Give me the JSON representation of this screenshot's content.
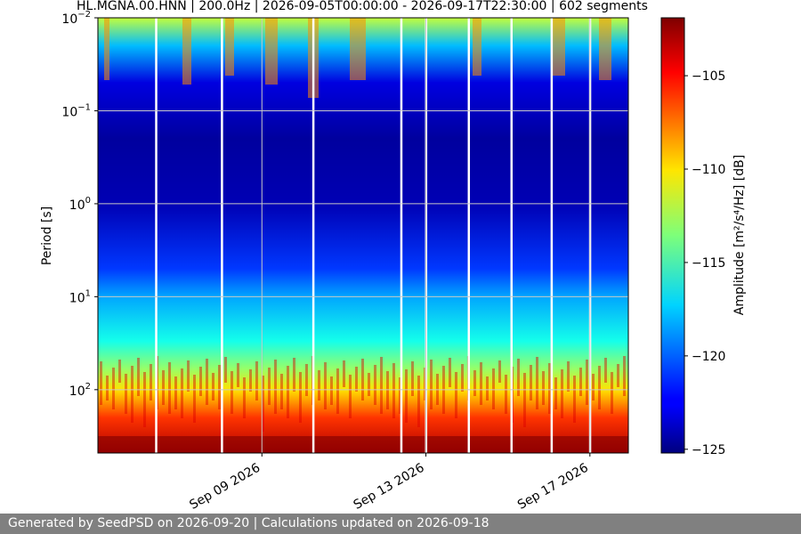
{
  "chart_data": {
    "type": "heatmap",
    "title": "HL.MGNA.00.HNN | 200.0Hz | 2026-09-05T00:00:00 - 2026-09-17T22:30:00 | 602 segments",
    "xlabel": "",
    "ylabel": "Period [s]",
    "x_range": [
      "2026-09-05T00:00:00",
      "2026-09-17T22:30:00"
    ],
    "x_tick_labels": [
      "Sep 09 2026",
      "Sep 13 2026",
      "Sep 17 2026"
    ],
    "x_tick_dates": [
      "2026-09-09",
      "2026-09-13",
      "2026-09-17"
    ],
    "y_scale": "log",
    "y_inverted": true,
    "y_range": [
      0.01,
      480
    ],
    "y_ticks": [
      {
        "value": 0.01,
        "base": "10",
        "exp": "−2"
      },
      {
        "value": 0.1,
        "base": "10",
        "exp": "−1"
      },
      {
        "value": 1,
        "base": "10",
        "exp": "0"
      },
      {
        "value": 10,
        "base": "10",
        "exp": "1"
      },
      {
        "value": 100,
        "base": "10",
        "exp": "2"
      }
    ],
    "grid": true,
    "colorbar": {
      "label": "Amplitude [m²/s⁴/Hz] [dB]",
      "range": [
        -125.2,
        -101.9
      ],
      "ticks": [
        -105,
        -110,
        -115,
        -120,
        -125
      ],
      "tick_labels": [
        "−105",
        "−110",
        "−115",
        "−120",
        "−125"
      ],
      "colormap": "jet"
    },
    "summary_profile_db": [
      {
        "period": 0.01,
        "db": -112
      },
      {
        "period": 0.02,
        "db": -118
      },
      {
        "period": 0.05,
        "db": -123
      },
      {
        "period": 0.2,
        "db": -124.5
      },
      {
        "period": 1,
        "db": -124
      },
      {
        "period": 5,
        "db": -121
      },
      {
        "period": 10,
        "db": -118.5
      },
      {
        "period": 30,
        "db": -116
      },
      {
        "period": 60,
        "db": -113
      },
      {
        "period": 100,
        "db": -110
      },
      {
        "period": 200,
        "db": -106
      },
      {
        "period": 480,
        "db": -103
      }
    ],
    "gaps": [
      "2026-09-06T10:00:00",
      "2026-09-08T00:30:00",
      "2026-09-10T06:00:00",
      "2026-09-12T09:30:00",
      "2026-09-13T00:00:00",
      "2026-09-14T01:00:00",
      "2026-09-15T02:00:00",
      "2026-09-16T01:30:00",
      "2026-09-17T00:00:00"
    ]
  },
  "footer": {
    "text": "Generated by SeedPSD on 2026-09-20 | Calculations updated on 2026-09-18"
  }
}
